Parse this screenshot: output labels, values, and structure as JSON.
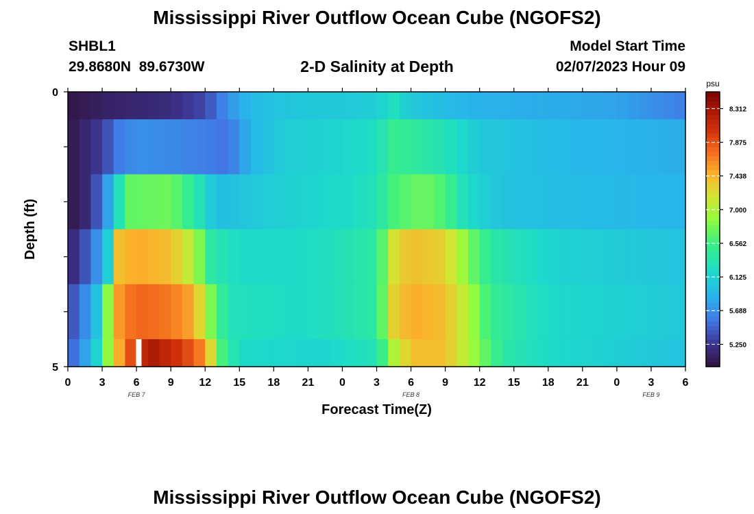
{
  "titles": {
    "main": "Mississippi River Outflow Ocean Cube (NGOFS2)",
    "second": "Mississippi River Outflow Ocean Cube (NGOFS2)"
  },
  "station": {
    "id": "SHBL1",
    "coords": "29.8680N  89.6730W"
  },
  "model": {
    "label": "Model Start Time",
    "start": "02/07/2023 Hour 09"
  },
  "colors": {
    "marker": "#ffffff",
    "axis": "#000000"
  },
  "chart_data": {
    "type": "heatmap",
    "title": "2-D Salinity at Depth",
    "xlabel": "Forecast Time(Z)",
    "ylabel": "Depth (ft)",
    "x_range_hours": [
      0,
      54
    ],
    "x_tick_labels": [
      "0",
      "3",
      "6",
      "9",
      "12",
      "15",
      "18",
      "21",
      "0",
      "3",
      "6",
      "9",
      "12",
      "15",
      "18",
      "21",
      "0",
      "3",
      "6"
    ],
    "date_labels": [
      {
        "label": "FEB 7",
        "hour": 6
      },
      {
        "label": "FEB 8",
        "hour": 30
      },
      {
        "label": "FEB 9",
        "hour": 51
      }
    ],
    "y_range": [
      0,
      5
    ],
    "y_tick_labels": [
      "0",
      "5"
    ],
    "colorbar": {
      "unit": "psu",
      "range": [
        4.96,
        8.53
      ],
      "ticks": [
        "8.312",
        "7.875",
        "7.438",
        "7.000",
        "6.562",
        "6.125",
        "5.688",
        "5.250"
      ]
    },
    "current_time_marker_hour": 6.2,
    "rows": [
      {
        "depth_top": 0,
        "depth_bottom": 0.5,
        "keys": [
          [
            0,
            5.0
          ],
          [
            3,
            5.1
          ],
          [
            6,
            5.15
          ],
          [
            9,
            5.2
          ],
          [
            12,
            5.35
          ],
          [
            14,
            5.7
          ],
          [
            16,
            5.95
          ],
          [
            18,
            6.0
          ],
          [
            21,
            6.05
          ],
          [
            24,
            6.05
          ],
          [
            27,
            6.1
          ],
          [
            28.5,
            6.25
          ],
          [
            30,
            6.05
          ],
          [
            33,
            5.95
          ],
          [
            36,
            5.88
          ],
          [
            42,
            5.85
          ],
          [
            48,
            5.8
          ],
          [
            51,
            5.7
          ],
          [
            54,
            5.6
          ]
        ]
      },
      {
        "depth_top": 0.5,
        "depth_bottom": 1.5,
        "keys": [
          [
            0,
            5.0
          ],
          [
            3,
            5.3
          ],
          [
            4.5,
            5.6
          ],
          [
            6,
            5.7
          ],
          [
            10,
            5.65
          ],
          [
            14,
            5.55
          ],
          [
            16,
            5.9
          ],
          [
            19,
            6.1
          ],
          [
            24,
            6.15
          ],
          [
            27,
            6.25
          ],
          [
            28.5,
            6.5
          ],
          [
            30,
            6.45
          ],
          [
            33,
            6.3
          ],
          [
            36,
            6.05
          ],
          [
            42,
            5.95
          ],
          [
            48,
            5.9
          ],
          [
            54,
            5.85
          ]
        ]
      },
      {
        "depth_top": 1.5,
        "depth_bottom": 2.5,
        "keys": [
          [
            0,
            5.0
          ],
          [
            2,
            5.2
          ],
          [
            3.5,
            5.8
          ],
          [
            4.5,
            6.3
          ],
          [
            5.5,
            6.7
          ],
          [
            9,
            6.75
          ],
          [
            11,
            6.4
          ],
          [
            13,
            5.95
          ],
          [
            18,
            6.1
          ],
          [
            24,
            6.2
          ],
          [
            27,
            6.3
          ],
          [
            28.5,
            6.6
          ],
          [
            31,
            6.75
          ],
          [
            33,
            6.6
          ],
          [
            35,
            6.2
          ],
          [
            38,
            6.0
          ],
          [
            45,
            5.95
          ],
          [
            54,
            5.9
          ]
        ]
      },
      {
        "depth_top": 2.5,
        "depth_bottom": 3.5,
        "keys": [
          [
            0,
            5.1
          ],
          [
            2,
            5.5
          ],
          [
            3.5,
            6.1
          ],
          [
            4.5,
            7.4
          ],
          [
            6,
            7.5
          ],
          [
            9,
            7.4
          ],
          [
            11,
            7.0
          ],
          [
            12.5,
            6.4
          ],
          [
            15,
            6.2
          ],
          [
            20,
            6.2
          ],
          [
            24,
            6.3
          ],
          [
            27,
            6.4
          ],
          [
            28.5,
            7.2
          ],
          [
            30,
            7.4
          ],
          [
            33,
            7.3
          ],
          [
            35,
            6.8
          ],
          [
            37,
            6.4
          ],
          [
            42,
            6.15
          ],
          [
            54,
            6.0
          ]
        ]
      },
      {
        "depth_top": 3.5,
        "depth_bottom": 4.5,
        "keys": [
          [
            0,
            5.3
          ],
          [
            2,
            5.8
          ],
          [
            3,
            6.2
          ],
          [
            4,
            7.5
          ],
          [
            6,
            7.8
          ],
          [
            9,
            7.7
          ],
          [
            11,
            7.5
          ],
          [
            12.5,
            6.8
          ],
          [
            14,
            6.3
          ],
          [
            20,
            6.2
          ],
          [
            24,
            6.3
          ],
          [
            27,
            6.4
          ],
          [
            28.5,
            7.3
          ],
          [
            30,
            7.5
          ],
          [
            33,
            7.4
          ],
          [
            35,
            7.0
          ],
          [
            37,
            6.5
          ],
          [
            42,
            6.2
          ],
          [
            54,
            6.05
          ]
        ]
      },
      {
        "depth_top": 4.5,
        "depth_bottom": 5,
        "keys": [
          [
            0,
            5.4
          ],
          [
            1.5,
            5.8
          ],
          [
            3,
            6.3
          ],
          [
            3.8,
            7.2
          ],
          [
            6,
            8.1
          ],
          [
            7.5,
            8.25
          ],
          [
            10,
            8.0
          ],
          [
            12,
            7.6
          ],
          [
            13.5,
            6.6
          ],
          [
            15,
            6.2
          ],
          [
            22,
            6.15
          ],
          [
            27,
            6.3
          ],
          [
            28.5,
            7.0
          ],
          [
            30,
            7.4
          ],
          [
            33,
            7.4
          ],
          [
            35,
            7.0
          ],
          [
            38,
            6.4
          ],
          [
            42,
            6.2
          ],
          [
            54,
            6.0
          ]
        ]
      }
    ]
  }
}
